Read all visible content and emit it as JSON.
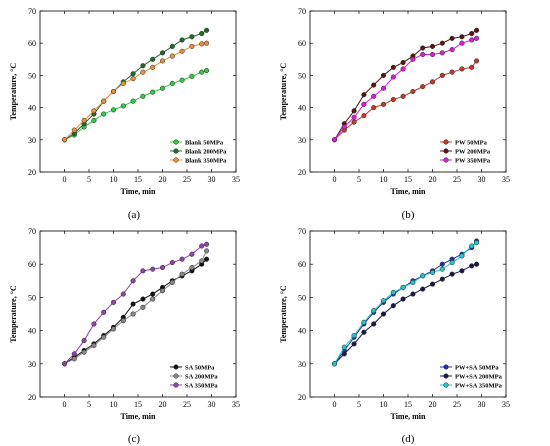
{
  "chart_data": [
    {
      "panel": "(a)",
      "type": "line",
      "xlabel": "Time, min",
      "ylabel": "Temperature, °C",
      "xlim": [
        -5,
        35
      ],
      "ylim": [
        20,
        70
      ],
      "xticks": [
        0,
        5,
        10,
        15,
        20,
        25,
        30,
        35
      ],
      "yticks": [
        20,
        30,
        40,
        50,
        60,
        70
      ],
      "legend_position": "bottom-right",
      "x": [
        0,
        2,
        4,
        6,
        8,
        10,
        12,
        14,
        16,
        18,
        20,
        22,
        24,
        26,
        28,
        29
      ],
      "series": [
        {
          "name": "Blank 50MPa",
          "color": "#2ecc40",
          "values": [
            30,
            31.5,
            34,
            36,
            38,
            39.3,
            40.5,
            42,
            43.5,
            44.8,
            46,
            47.5,
            48.5,
            49.7,
            51,
            51.5
          ]
        },
        {
          "name": "Blank 200MPa",
          "color": "#1f6b2e",
          "values": [
            30,
            32,
            35,
            38,
            42,
            45,
            48,
            50.5,
            53,
            55,
            57,
            59,
            61,
            62,
            63,
            64
          ]
        },
        {
          "name": "Blank 350MPa",
          "color": "#e8913a",
          "values": [
            30,
            33,
            36,
            39,
            42,
            45,
            47.5,
            49,
            51,
            52.5,
            54.5,
            56,
            57.5,
            59,
            59.8,
            60
          ]
        }
      ]
    },
    {
      "panel": "(b)",
      "type": "line",
      "xlabel": "Time, min",
      "ylabel": "Temperature, °C",
      "xlim": [
        -5,
        35
      ],
      "ylim": [
        20,
        70
      ],
      "xticks": [
        0,
        5,
        10,
        15,
        20,
        25,
        30,
        35
      ],
      "yticks": [
        20,
        30,
        40,
        50,
        60,
        70
      ],
      "legend_position": "bottom-right",
      "x": [
        0,
        2,
        4,
        6,
        8,
        10,
        12,
        14,
        16,
        18,
        20,
        22,
        24,
        26,
        28,
        29
      ],
      "series": [
        {
          "name": "PW 50MPa",
          "color": "#c0392b",
          "values": [
            30,
            33,
            35.5,
            37.5,
            40,
            41,
            42.5,
            43.5,
            45,
            46.5,
            48,
            50,
            51,
            52,
            52.5,
            54.5
          ]
        },
        {
          "name": "PW 200MPa",
          "color": "#5a1414",
          "values": [
            30,
            35,
            39,
            44,
            47,
            50,
            52.5,
            54,
            56,
            58.5,
            59,
            60,
            61.5,
            62,
            63,
            64
          ]
        },
        {
          "name": "PW 350MPa",
          "color": "#d91ed9",
          "values": [
            30,
            34,
            37,
            41,
            43.5,
            46,
            49.5,
            52,
            55,
            56.5,
            56.5,
            57,
            58,
            60,
            61,
            61.5
          ]
        }
      ]
    },
    {
      "panel": "(c)",
      "type": "line",
      "xlabel": "Time, min",
      "ylabel": "Temperature, °C",
      "xlim": [
        -5,
        35
      ],
      "ylim": [
        20,
        70
      ],
      "xticks": [
        0,
        5,
        10,
        15,
        20,
        25,
        30,
        35
      ],
      "yticks": [
        20,
        30,
        40,
        50,
        60,
        70
      ],
      "legend_position": "bottom-right",
      "x": [
        0,
        2,
        4,
        6,
        8,
        10,
        12,
        14,
        16,
        18,
        20,
        22,
        24,
        26,
        28,
        29
      ],
      "series": [
        {
          "name": "SA 50MPa",
          "color": "#111111",
          "values": [
            30,
            32,
            34,
            36,
            38.5,
            41,
            44,
            48,
            49.5,
            51,
            53,
            55,
            56.5,
            58,
            60,
            61.5
          ]
        },
        {
          "name": "SA 200MPa",
          "color": "#888888",
          "values": [
            30,
            31.5,
            33.5,
            35.5,
            38,
            40.5,
            43,
            45,
            47,
            49.5,
            52,
            54.5,
            57,
            59,
            61,
            64
          ]
        },
        {
          "name": "SA 350MPa",
          "color": "#8e44ad",
          "values": [
            30,
            33,
            37,
            42,
            45.5,
            48.5,
            51,
            55,
            58,
            58.5,
            59,
            60.5,
            61.5,
            63,
            65.5,
            66
          ]
        }
      ]
    },
    {
      "panel": "(d)",
      "type": "line",
      "xlabel": "Time, min",
      "ylabel": "Temperature, °C",
      "xlim": [
        -5,
        35
      ],
      "ylim": [
        20,
        70
      ],
      "xticks": [
        0,
        5,
        10,
        15,
        20,
        25,
        30,
        35
      ],
      "yticks": [
        20,
        30,
        40,
        50,
        60,
        70
      ],
      "legend_position": "bottom-right",
      "x": [
        0,
        2,
        4,
        6,
        8,
        10,
        12,
        14,
        16,
        18,
        20,
        22,
        24,
        26,
        28,
        29
      ],
      "series": [
        {
          "name": "PW+SA 50MPa",
          "color": "#1f2eb0",
          "values": [
            30,
            34,
            38,
            42,
            45.5,
            48.5,
            51,
            53,
            55,
            56.5,
            58,
            60,
            61.5,
            63,
            65,
            67
          ]
        },
        {
          "name": "PW+SA 200MPa",
          "color": "#1a1a4a",
          "values": [
            30,
            33,
            36,
            39.5,
            42,
            45,
            47.5,
            49.5,
            51,
            52.5,
            54,
            55.5,
            57,
            58,
            59.5,
            60
          ]
        },
        {
          "name": "PW+SA 350MPa",
          "color": "#26c6c6",
          "values": [
            30,
            35,
            38.5,
            42.5,
            46,
            49,
            51.5,
            53,
            54.5,
            56.5,
            57.5,
            58.5,
            60.5,
            62.5,
            65.5,
            66.5
          ]
        }
      ]
    }
  ]
}
